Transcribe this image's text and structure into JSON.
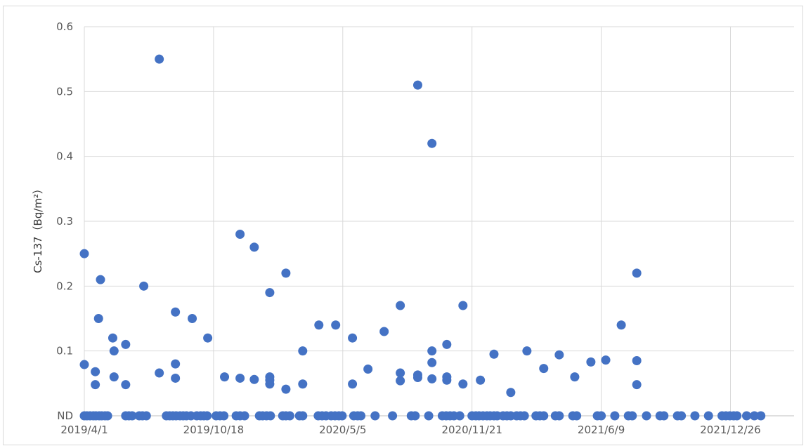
{
  "chart_data": {
    "type": "scatter",
    "title": "",
    "xlabel": "",
    "ylabel": "Cs-137（Bq/m²）",
    "ylim": [
      0,
      0.6
    ],
    "yticks": [
      "ND",
      "0.1",
      "0.2",
      "0.3",
      "0.4",
      "0.5",
      "0.6"
    ],
    "xlim": [
      "2019-04-01",
      "2022-02-15"
    ],
    "xticks": [
      "2019/4/1",
      "2019/10/18",
      "2020/5/5",
      "2020/11/21",
      "2021/6/9",
      "2021/12/26"
    ],
    "grid": true,
    "marker_color": "#4472C4",
    "nd_dates": [
      "2019-04-01",
      "2019-04-05",
      "2019-04-10",
      "2019-04-15",
      "2019-04-19",
      "2019-04-24",
      "2019-04-28",
      "2019-05-03",
      "2019-05-07",
      "2019-06-04",
      "2019-06-09",
      "2019-06-14",
      "2019-06-25",
      "2019-06-30",
      "2019-07-06",
      "2019-08-06",
      "2019-08-11",
      "2019-08-16",
      "2019-08-21",
      "2019-08-27",
      "2019-09-01",
      "2019-09-06",
      "2019-09-13",
      "2019-09-22",
      "2019-09-28",
      "2019-10-03",
      "2019-10-08",
      "2019-10-22",
      "2019-10-28",
      "2019-11-03",
      "2019-11-22",
      "2019-11-28",
      "2019-12-05",
      "2019-12-28",
      "2020-01-02",
      "2020-01-08",
      "2020-01-14",
      "2020-02-02",
      "2020-02-07",
      "2020-02-13",
      "2020-02-28",
      "2020-03-04",
      "2020-03-28",
      "2020-04-03",
      "2020-04-09",
      "2020-04-17",
      "2020-04-23",
      "2020-04-29",
      "2020-05-04",
      "2020-05-22",
      "2020-05-28",
      "2020-06-02",
      "2020-06-24",
      "2020-07-21",
      "2020-08-19",
      "2020-08-25",
      "2020-09-15",
      "2020-10-06",
      "2020-10-12",
      "2020-10-18",
      "2020-10-24",
      "2020-11-02",
      "2020-11-21",
      "2020-11-27",
      "2020-12-02",
      "2020-12-08",
      "2020-12-14",
      "2020-12-19",
      "2020-12-25",
      "2020-12-30",
      "2021-01-08",
      "2021-01-14",
      "2021-01-20",
      "2021-01-29",
      "2021-02-04",
      "2021-02-10",
      "2021-02-28",
      "2021-03-06",
      "2021-03-12",
      "2021-03-30",
      "2021-04-05",
      "2021-04-26",
      "2021-05-02",
      "2021-06-03",
      "2021-06-09",
      "2021-06-30",
      "2021-07-21",
      "2021-07-27",
      "2021-08-18",
      "2021-09-08",
      "2021-09-14",
      "2021-10-05",
      "2021-10-11",
      "2021-11-01",
      "2021-11-22",
      "2021-12-13",
      "2021-12-19",
      "2021-12-25",
      "2021-12-31",
      "2022-01-05",
      "2022-01-20",
      "2022-02-01",
      "2022-02-11"
    ],
    "points": [
      {
        "x": "2019-04-01",
        "y": 0.25
      },
      {
        "x": "2019-04-01",
        "y": 0.079
      },
      {
        "x": "2019-04-18",
        "y": 0.068
      },
      {
        "x": "2019-04-18",
        "y": 0.048
      },
      {
        "x": "2019-04-23",
        "y": 0.15
      },
      {
        "x": "2019-04-26",
        "y": 0.21
      },
      {
        "x": "2019-05-15",
        "y": 0.12
      },
      {
        "x": "2019-05-17",
        "y": 0.1
      },
      {
        "x": "2019-05-17",
        "y": 0.06
      },
      {
        "x": "2019-06-04",
        "y": 0.11
      },
      {
        "x": "2019-06-04",
        "y": 0.048
      },
      {
        "x": "2019-07-02",
        "y": 0.2
      },
      {
        "x": "2019-07-26",
        "y": 0.55
      },
      {
        "x": "2019-07-26",
        "y": 0.066
      },
      {
        "x": "2019-08-20",
        "y": 0.16
      },
      {
        "x": "2019-08-20",
        "y": 0.08
      },
      {
        "x": "2019-08-20",
        "y": 0.058
      },
      {
        "x": "2019-09-15",
        "y": 0.15
      },
      {
        "x": "2019-10-09",
        "y": 0.12
      },
      {
        "x": "2019-11-04",
        "y": 0.06
      },
      {
        "x": "2019-11-28",
        "y": 0.28
      },
      {
        "x": "2019-11-28",
        "y": 0.058
      },
      {
        "x": "2019-12-20",
        "y": 0.26
      },
      {
        "x": "2019-12-20",
        "y": 0.056
      },
      {
        "x": "2020-01-13",
        "y": 0.19
      },
      {
        "x": "2020-01-13",
        "y": 0.06
      },
      {
        "x": "2020-01-13",
        "y": 0.055
      },
      {
        "x": "2020-01-13",
        "y": 0.049
      },
      {
        "x": "2020-02-07",
        "y": 0.22
      },
      {
        "x": "2020-02-07",
        "y": 0.041
      },
      {
        "x": "2020-03-04",
        "y": 0.1
      },
      {
        "x": "2020-03-04",
        "y": 0.049
      },
      {
        "x": "2020-03-29",
        "y": 0.14
      },
      {
        "x": "2020-04-24",
        "y": 0.14
      },
      {
        "x": "2020-05-20",
        "y": 0.12
      },
      {
        "x": "2020-05-20",
        "y": 0.049
      },
      {
        "x": "2020-06-13",
        "y": 0.072
      },
      {
        "x": "2020-07-08",
        "y": 0.13
      },
      {
        "x": "2020-08-02",
        "y": 0.17
      },
      {
        "x": "2020-08-02",
        "y": 0.066
      },
      {
        "x": "2020-08-02",
        "y": 0.054
      },
      {
        "x": "2020-08-29",
        "y": 0.51
      },
      {
        "x": "2020-08-29",
        "y": 0.063
      },
      {
        "x": "2020-08-29",
        "y": 0.059
      },
      {
        "x": "2020-09-20",
        "y": 0.42
      },
      {
        "x": "2020-09-20",
        "y": 0.1
      },
      {
        "x": "2020-09-20",
        "y": 0.082
      },
      {
        "x": "2020-09-20",
        "y": 0.057
      },
      {
        "x": "2020-10-13",
        "y": 0.11
      },
      {
        "x": "2020-10-13",
        "y": 0.06
      },
      {
        "x": "2020-10-13",
        "y": 0.055
      },
      {
        "x": "2020-11-07",
        "y": 0.17
      },
      {
        "x": "2020-11-07",
        "y": 0.049
      },
      {
        "x": "2020-12-04",
        "y": 0.055
      },
      {
        "x": "2020-12-25",
        "y": 0.095
      },
      {
        "x": "2021-01-20",
        "y": 0.036
      },
      {
        "x": "2021-02-14",
        "y": 0.1
      },
      {
        "x": "2021-03-12",
        "y": 0.073
      },
      {
        "x": "2021-04-05",
        "y": 0.094
      },
      {
        "x": "2021-04-29",
        "y": 0.06
      },
      {
        "x": "2021-05-24",
        "y": 0.083
      },
      {
        "x": "2021-06-16",
        "y": 0.086
      },
      {
        "x": "2021-07-10",
        "y": 0.14
      },
      {
        "x": "2021-08-03",
        "y": 0.22
      },
      {
        "x": "2021-08-03",
        "y": 0.085
      },
      {
        "x": "2021-08-03",
        "y": 0.048
      }
    ]
  }
}
